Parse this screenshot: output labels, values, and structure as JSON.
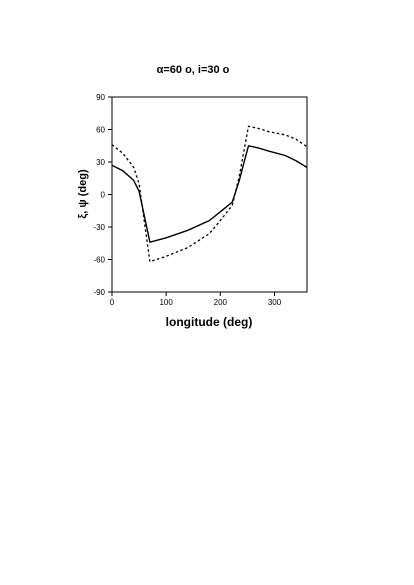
{
  "chart_data": {
    "type": "line",
    "title": "α=60 o, i=30 o",
    "xlabel": "longitude (deg)",
    "ylabel": "ξ, ψ (deg)",
    "xlim": [
      0,
      360
    ],
    "ylim": [
      -90,
      90
    ],
    "xticks": [
      0,
      100,
      200,
      300
    ],
    "yticks": [
      90,
      60,
      30,
      0,
      -30,
      -60,
      -90
    ],
    "grid": false,
    "legend": "none",
    "series": [
      {
        "style": "solid",
        "color": "#000000",
        "x": [
          0,
          20,
          40,
          50,
          70,
          100,
          140,
          180,
          200,
          222,
          235,
          245,
          252,
          270,
          290,
          320,
          340,
          360
        ],
        "y": [
          27,
          22,
          13,
          3,
          -44,
          -40,
          -33,
          -24,
          -16,
          -7,
          13,
          32,
          45,
          43,
          40,
          36,
          31,
          25
        ]
      },
      {
        "style": "dotted",
        "color": "#000000",
        "x": [
          0,
          20,
          40,
          50,
          70,
          100,
          140,
          180,
          200,
          222,
          235,
          245,
          252,
          270,
          290,
          320,
          340,
          360
        ],
        "y": [
          46,
          38,
          25,
          10,
          -62,
          -57,
          -49,
          -36,
          -24,
          -10,
          17,
          44,
          63,
          61,
          58,
          55,
          51,
          44
        ]
      }
    ]
  }
}
